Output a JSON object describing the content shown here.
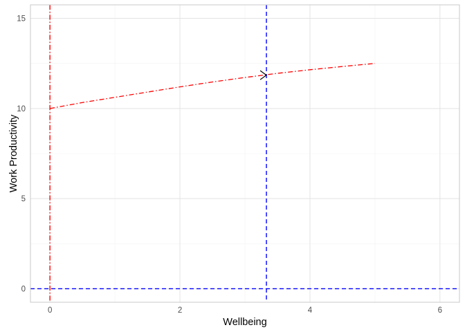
{
  "chart_data": {
    "type": "line",
    "xlabel": "Wellbeing",
    "ylabel": "Work Productivity",
    "xlim": [
      -0.3,
      6.3
    ],
    "ylim": [
      -0.75,
      15.75
    ],
    "x_ticks": [
      0,
      2,
      4,
      6
    ],
    "y_ticks": [
      0,
      5,
      10,
      15
    ],
    "x_minor": [
      1,
      3,
      5
    ],
    "y_minor": [
      2.5,
      7.5,
      12.5
    ],
    "grid": true,
    "colors": {
      "curve": "#ff0000",
      "curve_axis": "#ff0000",
      "reference": "#0000ff",
      "grid_major": "#e3e3e3",
      "grid_minor": "#f2f2f2",
      "panel_border": "#c8c8c8",
      "arrow": "#000000"
    },
    "series": [
      {
        "style": "dashdot",
        "x": [
          0,
          0.5,
          1,
          1.5,
          2,
          2.5,
          3,
          3.5,
          4,
          4.5,
          5
        ],
        "y": [
          10.0,
          10.33,
          10.62,
          10.91,
          11.2,
          11.47,
          11.72,
          11.95,
          12.15,
          12.33,
          12.5
        ]
      }
    ],
    "vlines": [
      {
        "x": 0,
        "color_key": "curve_axis",
        "style": "dashdot"
      },
      {
        "x": 3.33,
        "color_key": "reference",
        "style": "dashed"
      }
    ],
    "hlines": [
      {
        "y": 0,
        "color_key": "reference",
        "style": "dashed"
      }
    ],
    "annotations": [
      {
        "type": "arrow",
        "x_from": 3.1,
        "y_from": 11.85,
        "x_to": 3.33,
        "y_to": 11.85
      }
    ]
  }
}
